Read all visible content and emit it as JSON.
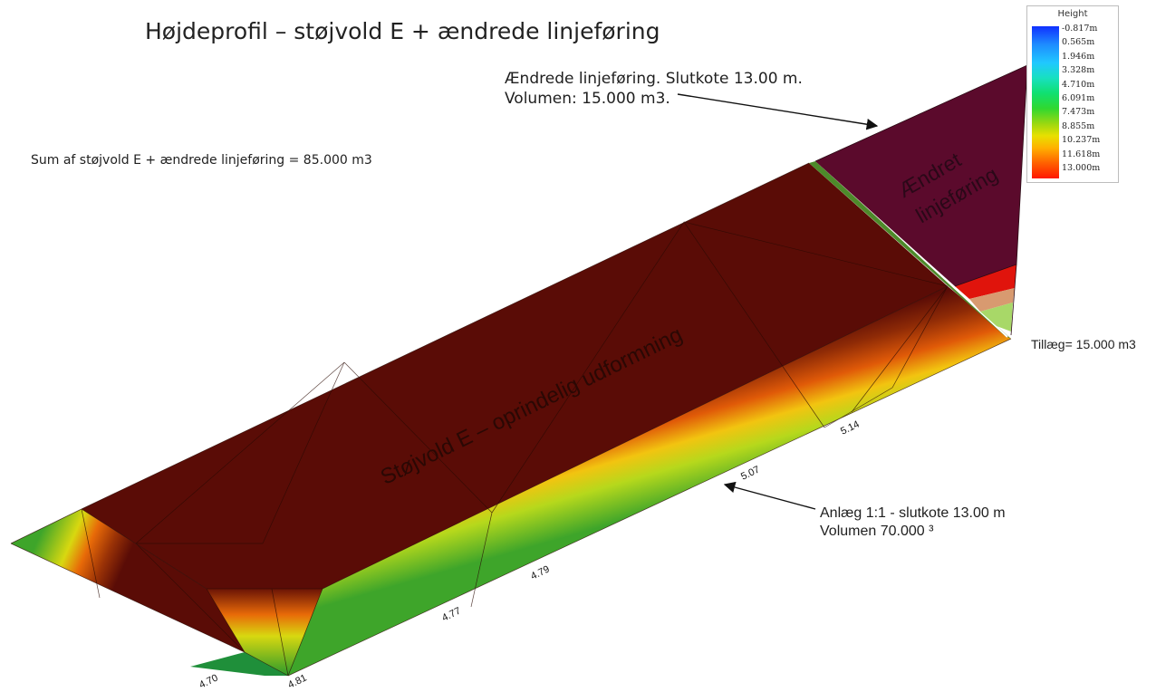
{
  "title": "Højdeprofil – støjvold E + ændrede linjeføring",
  "sum_text": "Sum af støjvold E + ændrede linjeføring = 85.000 m3",
  "annotation_top": {
    "line1": "Ændrede linjeføring. Slutkote 13.00 m.",
    "line2": "Volumen: 15.000 m3."
  },
  "annotation_bottom": {
    "line1": "Anlæg 1:1 - slutkote 13.00 m",
    "line2": "Volumen 70.000 ³"
  },
  "tillaeg_text": "Tillæg= 15.000 m3",
  "surface_labels": {
    "main": "Støjvold E – oprindelig udformning",
    "changed_line1": "Ændret",
    "changed_line2": "linjeføring"
  },
  "edge_labels": [
    "4.70",
    "4.81",
    "4.77",
    "4.79",
    "5.07",
    "5.14"
  ],
  "legend": {
    "title": "Height",
    "values": [
      "-0.817m",
      "0.565m",
      "1.946m",
      "3.328m",
      "4.710m",
      "6.091m",
      "7.473m",
      "8.855m",
      "10.237m",
      "11.618m",
      "13.000m"
    ]
  },
  "colors": {
    "crest": "#5a0c06",
    "changed_alignment": "#5b0a2c",
    "slope_low": "#2e9c23",
    "slope_mid": "#c7d81a",
    "red_patch": "#e0140c",
    "tan_patch": "#d89a70",
    "green_patch": "#a8d868"
  }
}
